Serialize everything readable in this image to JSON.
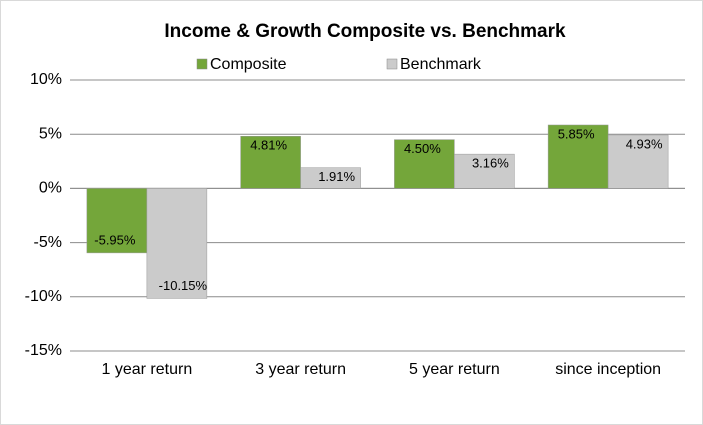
{
  "chart_data": {
    "type": "bar",
    "title": "Income & Growth Composite vs. Benchmark",
    "categories": [
      "1 year return",
      "3 year return",
      "5 year return",
      "since inception"
    ],
    "series": [
      {
        "name": "Composite",
        "color": "#74a63a",
        "values": [
          -5.95,
          4.81,
          4.5,
          5.85
        ],
        "value_labels": [
          "-5.95%",
          "4.81%",
          "4.50%",
          "5.85%"
        ]
      },
      {
        "name": "Benchmark",
        "color": "#cbcbcb",
        "values": [
          -10.15,
          1.91,
          3.16,
          4.93
        ],
        "value_labels": [
          "-10.15%",
          "1.91%",
          "3.16%",
          "4.93%"
        ]
      }
    ],
    "ylim": [
      -15,
      10
    ],
    "yticks": [
      {
        "value": -15,
        "label": "-15%"
      },
      {
        "value": -10,
        "label": "-10%"
      },
      {
        "value": -5,
        "label": "-5%"
      },
      {
        "value": 0,
        "label": "0%"
      },
      {
        "value": 5,
        "label": "5%"
      },
      {
        "value": 10,
        "label": "10%"
      }
    ],
    "grid": true,
    "legend": "top"
  }
}
